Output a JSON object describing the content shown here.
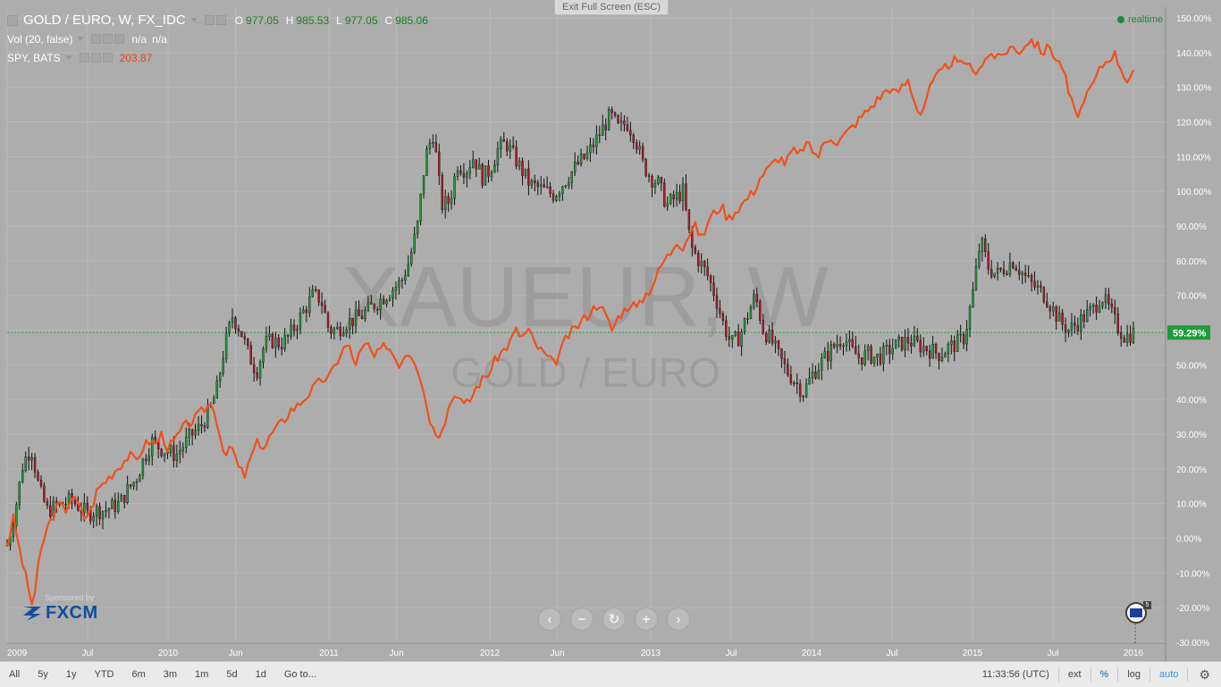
{
  "chart_data": {
    "type": "candlestick+line",
    "title": "GOLD / EURO, W, FX_IDC",
    "watermark_main": "XAUEUR, W",
    "watermark_sub": "GOLD / EURO",
    "y_axis": {
      "labels": [
        "150.00%",
        "140.00%",
        "130.00%",
        "120.00%",
        "110.00%",
        "100.00%",
        "90.00%",
        "80.00%",
        "70.00%",
        "60.00%",
        "50.00%",
        "40.00%",
        "30.00%",
        "20.00%",
        "10.00%",
        "0.00%",
        "-10.00%",
        "-20.00%",
        "-30.00%"
      ],
      "range": [
        -30,
        150
      ],
      "current_label": "59.29%",
      "current_value": 59.29
    },
    "x_axis": {
      "labels": [
        {
          "text": "2009",
          "t": 2009.0
        },
        {
          "text": "Jul",
          "t": 2009.5
        },
        {
          "text": "2010",
          "t": 2010.0
        },
        {
          "text": "Jun",
          "t": 2010.42
        },
        {
          "text": "2011",
          "t": 2011.0
        },
        {
          "text": "Jun",
          "t": 2011.42
        },
        {
          "text": "2012",
          "t": 2012.0
        },
        {
          "text": "Jun",
          "t": 2012.42
        },
        {
          "text": "2013",
          "t": 2013.0
        },
        {
          "text": "Jul",
          "t": 2013.5
        },
        {
          "text": "2014",
          "t": 2014.0
        },
        {
          "text": "Jul",
          "t": 2014.5
        },
        {
          "text": "2015",
          "t": 2015.0
        },
        {
          "text": "Jul",
          "t": 2015.5
        },
        {
          "text": "2016",
          "t": 2016.0
        }
      ],
      "range": [
        2009.0,
        2016.0
      ]
    },
    "gold_series": {
      "name": "GOLD / EURO, W, FX_IDC",
      "color_up": "#1e9c3a",
      "color_down": "#b2182b",
      "points": [
        [
          2009.0,
          -2
        ],
        [
          2009.05,
          8
        ],
        [
          2009.1,
          22
        ],
        [
          2009.15,
          26
        ],
        [
          2009.2,
          14
        ],
        [
          2009.25,
          8
        ],
        [
          2009.3,
          9
        ],
        [
          2009.35,
          10
        ],
        [
          2009.4,
          11
        ],
        [
          2009.45,
          9
        ],
        [
          2009.5,
          7
        ],
        [
          2009.55,
          8
        ],
        [
          2009.6,
          8
        ],
        [
          2009.65,
          9
        ],
        [
          2009.7,
          10
        ],
        [
          2009.75,
          14
        ],
        [
          2009.8,
          17
        ],
        [
          2009.85,
          23
        ],
        [
          2009.9,
          28
        ],
        [
          2009.95,
          26
        ],
        [
          2010.0,
          25
        ],
        [
          2010.05,
          24
        ],
        [
          2010.1,
          27
        ],
        [
          2010.15,
          30
        ],
        [
          2010.2,
          32
        ],
        [
          2010.25,
          36
        ],
        [
          2010.3,
          42
        ],
        [
          2010.35,
          55
        ],
        [
          2010.4,
          64
        ],
        [
          2010.45,
          60
        ],
        [
          2010.5,
          53
        ],
        [
          2010.55,
          48
        ],
        [
          2010.6,
          56
        ],
        [
          2010.65,
          57
        ],
        [
          2010.7,
          56
        ],
        [
          2010.75,
          58
        ],
        [
          2010.8,
          62
        ],
        [
          2010.85,
          66
        ],
        [
          2010.9,
          70
        ],
        [
          2010.95,
          69
        ],
        [
          2011.0,
          60
        ],
        [
          2011.05,
          60
        ],
        [
          2011.1,
          62
        ],
        [
          2011.15,
          63
        ],
        [
          2011.2,
          64
        ],
        [
          2011.25,
          66
        ],
        [
          2011.3,
          68
        ],
        [
          2011.35,
          70
        ],
        [
          2011.4,
          72
        ],
        [
          2011.45,
          74
        ],
        [
          2011.5,
          80
        ],
        [
          2011.55,
          90
        ],
        [
          2011.6,
          110
        ],
        [
          2011.65,
          117
        ],
        [
          2011.7,
          96
        ],
        [
          2011.75,
          97
        ],
        [
          2011.8,
          108
        ],
        [
          2011.85,
          106
        ],
        [
          2011.9,
          110
        ],
        [
          2011.95,
          104
        ],
        [
          2012.0,
          106
        ],
        [
          2012.05,
          112
        ],
        [
          2012.1,
          114
        ],
        [
          2012.15,
          110
        ],
        [
          2012.2,
          106
        ],
        [
          2012.25,
          102
        ],
        [
          2012.3,
          101
        ],
        [
          2012.35,
          100
        ],
        [
          2012.4,
          99
        ],
        [
          2012.45,
          102
        ],
        [
          2012.5,
          105
        ],
        [
          2012.55,
          108
        ],
        [
          2012.6,
          110
        ],
        [
          2012.65,
          114
        ],
        [
          2012.7,
          118
        ],
        [
          2012.75,
          122
        ],
        [
          2012.8,
          118
        ],
        [
          2012.85,
          120
        ],
        [
          2012.9,
          116
        ],
        [
          2012.95,
          108
        ],
        [
          2013.0,
          104
        ],
        [
          2013.05,
          102
        ],
        [
          2013.1,
          96
        ],
        [
          2013.15,
          98
        ],
        [
          2013.2,
          100
        ],
        [
          2013.25,
          84
        ],
        [
          2013.3,
          80
        ],
        [
          2013.35,
          76
        ],
        [
          2013.4,
          70
        ],
        [
          2013.45,
          62
        ],
        [
          2013.5,
          56
        ],
        [
          2013.55,
          58
        ],
        [
          2013.6,
          64
        ],
        [
          2013.65,
          70
        ],
        [
          2013.7,
          60
        ],
        [
          2013.75,
          57
        ],
        [
          2013.8,
          52
        ],
        [
          2013.85,
          48
        ],
        [
          2013.9,
          45
        ],
        [
          2013.95,
          42
        ],
        [
          2014.0,
          47
        ],
        [
          2014.05,
          50
        ],
        [
          2014.1,
          53
        ],
        [
          2014.15,
          56
        ],
        [
          2014.2,
          58
        ],
        [
          2014.25,
          54
        ],
        [
          2014.3,
          52
        ],
        [
          2014.35,
          53
        ],
        [
          2014.4,
          52
        ],
        [
          2014.45,
          53
        ],
        [
          2014.5,
          55
        ],
        [
          2014.55,
          56
        ],
        [
          2014.6,
          57
        ],
        [
          2014.65,
          56
        ],
        [
          2014.7,
          55
        ],
        [
          2014.75,
          54
        ],
        [
          2014.8,
          53
        ],
        [
          2014.85,
          55
        ],
        [
          2014.9,
          56
        ],
        [
          2014.95,
          58
        ],
        [
          2015.0,
          70
        ],
        [
          2015.05,
          86
        ],
        [
          2015.1,
          78
        ],
        [
          2015.15,
          76
        ],
        [
          2015.2,
          78
        ],
        [
          2015.25,
          80
        ],
        [
          2015.3,
          77
        ],
        [
          2015.35,
          74
        ],
        [
          2015.4,
          72
        ],
        [
          2015.45,
          70
        ],
        [
          2015.5,
          66
        ],
        [
          2015.55,
          62
        ],
        [
          2015.6,
          60
        ],
        [
          2015.65,
          62
        ],
        [
          2015.7,
          64
        ],
        [
          2015.75,
          66
        ],
        [
          2015.8,
          70
        ],
        [
          2015.85,
          66
        ],
        [
          2015.9,
          61
        ],
        [
          2015.95,
          58
        ],
        [
          2016.0,
          59.3
        ]
      ]
    },
    "spy_series": {
      "name": "SPY, BATS",
      "color": "#f0501a",
      "points": [
        [
          2009.0,
          -2
        ],
        [
          2009.04,
          6
        ],
        [
          2009.08,
          -4
        ],
        [
          2009.12,
          -12
        ],
        [
          2009.16,
          -20
        ],
        [
          2009.2,
          -6
        ],
        [
          2009.24,
          2
        ],
        [
          2009.28,
          6
        ],
        [
          2009.32,
          10
        ],
        [
          2009.36,
          8
        ],
        [
          2009.4,
          12
        ],
        [
          2009.44,
          10
        ],
        [
          2009.48,
          6
        ],
        [
          2009.52,
          8
        ],
        [
          2009.56,
          14
        ],
        [
          2009.6,
          16
        ],
        [
          2009.64,
          18
        ],
        [
          2009.68,
          20
        ],
        [
          2009.72,
          22
        ],
        [
          2009.76,
          24
        ],
        [
          2009.8,
          22
        ],
        [
          2009.84,
          26
        ],
        [
          2009.88,
          28
        ],
        [
          2009.92,
          27
        ],
        [
          2009.96,
          30
        ],
        [
          2010.0,
          26
        ],
        [
          2010.04,
          28
        ],
        [
          2010.08,
          31
        ],
        [
          2010.12,
          33
        ],
        [
          2010.16,
          34
        ],
        [
          2010.2,
          36
        ],
        [
          2010.24,
          38
        ],
        [
          2010.28,
          39
        ],
        [
          2010.32,
          30
        ],
        [
          2010.36,
          24
        ],
        [
          2010.4,
          26
        ],
        [
          2010.44,
          20
        ],
        [
          2010.48,
          18
        ],
        [
          2010.52,
          24
        ],
        [
          2010.56,
          28
        ],
        [
          2010.6,
          26
        ],
        [
          2010.64,
          30
        ],
        [
          2010.68,
          32
        ],
        [
          2010.72,
          34
        ],
        [
          2010.76,
          37
        ],
        [
          2010.8,
          38
        ],
        [
          2010.84,
          40
        ],
        [
          2010.88,
          42
        ],
        [
          2010.92,
          44
        ],
        [
          2010.96,
          46
        ],
        [
          2011.0,
          46
        ],
        [
          2011.04,
          50
        ],
        [
          2011.08,
          54
        ],
        [
          2011.12,
          56
        ],
        [
          2011.16,
          50
        ],
        [
          2011.2,
          54
        ],
        [
          2011.24,
          56
        ],
        [
          2011.28,
          52
        ],
        [
          2011.32,
          54
        ],
        [
          2011.36,
          56
        ],
        [
          2011.4,
          53
        ],
        [
          2011.44,
          50
        ],
        [
          2011.48,
          54
        ],
        [
          2011.52,
          53
        ],
        [
          2011.56,
          48
        ],
        [
          2011.6,
          40
        ],
        [
          2011.64,
          32
        ],
        [
          2011.68,
          30
        ],
        [
          2011.72,
          34
        ],
        [
          2011.76,
          40
        ],
        [
          2011.8,
          42
        ],
        [
          2011.84,
          38
        ],
        [
          2011.88,
          40
        ],
        [
          2011.92,
          44
        ],
        [
          2011.96,
          46
        ],
        [
          2012.0,
          48
        ],
        [
          2012.04,
          52
        ],
        [
          2012.08,
          54
        ],
        [
          2012.12,
          56
        ],
        [
          2012.16,
          60
        ],
        [
          2012.2,
          58
        ],
        [
          2012.24,
          60
        ],
        [
          2012.28,
          56
        ],
        [
          2012.32,
          54
        ],
        [
          2012.36,
          52
        ],
        [
          2012.4,
          50
        ],
        [
          2012.44,
          54
        ],
        [
          2012.48,
          58
        ],
        [
          2012.52,
          60
        ],
        [
          2012.56,
          62
        ],
        [
          2012.6,
          64
        ],
        [
          2012.64,
          66
        ],
        [
          2012.68,
          68
        ],
        [
          2012.72,
          64
        ],
        [
          2012.76,
          60
        ],
        [
          2012.8,
          64
        ],
        [
          2012.84,
          66
        ],
        [
          2012.88,
          68
        ],
        [
          2012.92,
          66
        ],
        [
          2012.96,
          70
        ],
        [
          2013.0,
          72
        ],
        [
          2013.04,
          76
        ],
        [
          2013.08,
          80
        ],
        [
          2013.12,
          82
        ],
        [
          2013.16,
          86
        ],
        [
          2013.2,
          84
        ],
        [
          2013.24,
          88
        ],
        [
          2013.28,
          90
        ],
        [
          2013.32,
          86
        ],
        [
          2013.36,
          92
        ],
        [
          2013.4,
          94
        ],
        [
          2013.44,
          96
        ],
        [
          2013.48,
          92
        ],
        [
          2013.52,
          94
        ],
        [
          2013.56,
          96
        ],
        [
          2013.6,
          98
        ],
        [
          2013.64,
          100
        ],
        [
          2013.68,
          104
        ],
        [
          2013.72,
          106
        ],
        [
          2013.76,
          108
        ],
        [
          2013.8,
          110
        ],
        [
          2013.84,
          108
        ],
        [
          2013.88,
          112
        ],
        [
          2013.92,
          110
        ],
        [
          2013.96,
          114
        ],
        [
          2014.0,
          112
        ],
        [
          2014.04,
          110
        ],
        [
          2014.08,
          114
        ],
        [
          2014.12,
          116
        ],
        [
          2014.16,
          114
        ],
        [
          2014.2,
          116
        ],
        [
          2014.24,
          118
        ],
        [
          2014.28,
          120
        ],
        [
          2014.32,
          122
        ],
        [
          2014.36,
          124
        ],
        [
          2014.4,
          126
        ],
        [
          2014.44,
          128
        ],
        [
          2014.48,
          130
        ],
        [
          2014.52,
          128
        ],
        [
          2014.56,
          130
        ],
        [
          2014.6,
          132
        ],
        [
          2014.64,
          126
        ],
        [
          2014.68,
          122
        ],
        [
          2014.72,
          128
        ],
        [
          2014.76,
          132
        ],
        [
          2014.8,
          134
        ],
        [
          2014.84,
          136
        ],
        [
          2014.88,
          138
        ],
        [
          2014.92,
          136
        ],
        [
          2014.96,
          138
        ],
        [
          2015.0,
          134
        ],
        [
          2015.04,
          136
        ],
        [
          2015.08,
          138
        ],
        [
          2015.12,
          140
        ],
        [
          2015.16,
          138
        ],
        [
          2015.2,
          140
        ],
        [
          2015.24,
          142
        ],
        [
          2015.28,
          140
        ],
        [
          2015.32,
          142
        ],
        [
          2015.36,
          144
        ],
        [
          2015.4,
          142
        ],
        [
          2015.44,
          140
        ],
        [
          2015.48,
          142
        ],
        [
          2015.52,
          138
        ],
        [
          2015.56,
          136
        ],
        [
          2015.6,
          128
        ],
        [
          2015.64,
          122
        ],
        [
          2015.68,
          124
        ],
        [
          2015.72,
          128
        ],
        [
          2015.76,
          132
        ],
        [
          2015.8,
          136
        ],
        [
          2015.84,
          138
        ],
        [
          2015.88,
          140
        ],
        [
          2015.92,
          136
        ],
        [
          2015.96,
          132
        ],
        [
          2016.0,
          134
        ]
      ]
    }
  },
  "legend": {
    "main_title": "GOLD / EURO, W, FX_IDC",
    "ohlc": [
      {
        "key": "O",
        "value": "977.05"
      },
      {
        "key": "H",
        "value": "985.53"
      },
      {
        "key": "L",
        "value": "977.05"
      },
      {
        "key": "C",
        "value": "985.06"
      }
    ],
    "vol_label": "Vol (20, false)",
    "vol_value1": "n/a",
    "vol_value2": "n/a",
    "spy_label": "SPY, BATS",
    "spy_value": "203.87"
  },
  "exit_fullscreen_label": "Exit Full Screen (ESC)",
  "realtime_label": "realtime",
  "sponsor": {
    "by_label": "Sponsored by",
    "logo_text": "FXCM"
  },
  "flag_count": "5",
  "timeframes": [
    "All",
    "5y",
    "1y",
    "YTD",
    "6m",
    "3m",
    "1m",
    "5d",
    "1d",
    "Go to..."
  ],
  "bottom_right": {
    "clock": "11:33:56 (UTC)",
    "ext": "ext",
    "pct": "%",
    "log": "log",
    "auto": "auto"
  }
}
